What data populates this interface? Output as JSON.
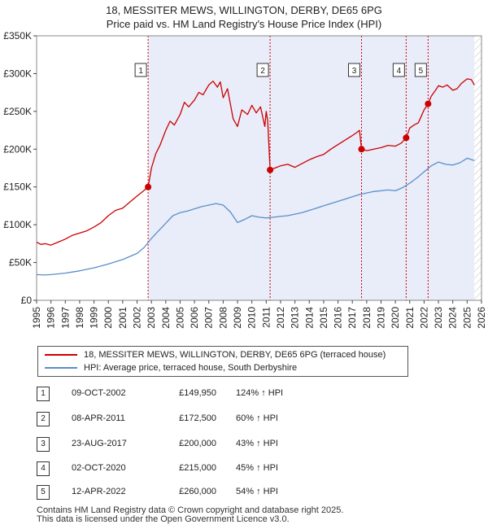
{
  "title": {
    "line1": "18, MESSITER MEWS, WILLINGTON, DERBY, DE65 6PG",
    "line2": "Price paid vs. HM Land Registry's House Price Index (HPI)"
  },
  "chart_data": {
    "type": "line",
    "title": "18, MESSITER MEWS, WILLINGTON, DERBY, DE65 6PG — Price paid vs. HM Land Registry's House Price Index (HPI)",
    "xlim": [
      1995,
      2026
    ],
    "ylim": [
      0,
      350000
    ],
    "x_ticks": [
      1995,
      1996,
      1997,
      1998,
      1999,
      2000,
      2001,
      2002,
      2003,
      2004,
      2005,
      2006,
      2007,
      2008,
      2009,
      2010,
      2011,
      2012,
      2013,
      2014,
      2015,
      2016,
      2017,
      2018,
      2019,
      2020,
      2021,
      2022,
      2023,
      2024,
      2025,
      2026
    ],
    "y_ticks": [
      {
        "value": 0,
        "label": "£0"
      },
      {
        "value": 50000,
        "label": "£50K"
      },
      {
        "value": 100000,
        "label": "£100K"
      },
      {
        "value": 150000,
        "label": "£150K"
      },
      {
        "value": 200000,
        "label": "£200K"
      },
      {
        "value": 250000,
        "label": "£250K"
      },
      {
        "value": 300000,
        "label": "£300K"
      },
      {
        "value": 350000,
        "label": "£350K"
      }
    ],
    "series": [
      {
        "name": "18, MESSITER MEWS, WILLINGTON, DERBY, DE65 6PG (terraced house)",
        "color": "#cc0000",
        "x": [
          1995.0,
          1995.3,
          1995.6,
          1996.0,
          1996.5,
          1997.0,
          1997.5,
          1998.0,
          1998.5,
          1999.0,
          1999.5,
          2000.0,
          2000.5,
          2001.0,
          2001.5,
          2002.0,
          2002.4,
          2002.77,
          2003.0,
          2003.3,
          2003.6,
          2004.0,
          2004.3,
          2004.6,
          2005.0,
          2005.3,
          2005.6,
          2006.0,
          2006.3,
          2006.6,
          2007.0,
          2007.3,
          2007.6,
          2007.8,
          2008.0,
          2008.3,
          2008.7,
          2009.0,
          2009.3,
          2009.7,
          2010.0,
          2010.3,
          2010.6,
          2010.9,
          2011.0,
          2011.1,
          2011.27,
          2011.6,
          2012.0,
          2012.5,
          2013.0,
          2013.5,
          2014.0,
          2014.5,
          2015.0,
          2015.5,
          2016.0,
          2016.5,
          2017.0,
          2017.3,
          2017.5,
          2017.64,
          2018.0,
          2018.5,
          2019.0,
          2019.5,
          2020.0,
          2020.4,
          2020.75,
          2021.0,
          2021.3,
          2021.6,
          2022.0,
          2022.28,
          2022.5,
          2022.8,
          2023.0,
          2023.3,
          2023.6,
          2024.0,
          2024.3,
          2024.6,
          2025.0,
          2025.3,
          2025.5
        ],
        "y": [
          77000,
          74000,
          75000,
          73000,
          77000,
          81000,
          86000,
          89000,
          92000,
          97000,
          103000,
          112000,
          119000,
          122000,
          130000,
          138000,
          144000,
          149950,
          175000,
          194000,
          205000,
          225000,
          237000,
          232000,
          246000,
          262000,
          256000,
          265000,
          275000,
          272000,
          285000,
          290000,
          282000,
          289000,
          268000,
          280000,
          240000,
          230000,
          252000,
          246000,
          258000,
          248000,
          256000,
          230000,
          250000,
          238000,
          172500,
          175000,
          178000,
          180000,
          176000,
          181000,
          186000,
          190000,
          193000,
          200000,
          206000,
          212000,
          218000,
          222000,
          225000,
          200000,
          198000,
          200000,
          202000,
          205000,
          204000,
          208000,
          215000,
          228000,
          232000,
          235000,
          252000,
          260000,
          270000,
          278000,
          284000,
          282000,
          285000,
          278000,
          280000,
          287000,
          293000,
          292000,
          285000
        ]
      },
      {
        "name": "HPI: Average price, terraced house, South Derbyshire",
        "color": "#5b8ec9",
        "x": [
          1995.0,
          1995.5,
          1996.0,
          1996.5,
          1997.0,
          1997.5,
          1998.0,
          1998.5,
          1999.0,
          1999.5,
          2000.0,
          2000.5,
          2001.0,
          2001.5,
          2002.0,
          2002.5,
          2003.0,
          2003.5,
          2004.0,
          2004.5,
          2005.0,
          2005.5,
          2006.0,
          2006.5,
          2007.0,
          2007.5,
          2008.0,
          2008.5,
          2009.0,
          2009.5,
          2010.0,
          2010.5,
          2011.0,
          2011.5,
          2012.0,
          2012.5,
          2013.0,
          2013.5,
          2014.0,
          2014.5,
          2015.0,
          2015.5,
          2016.0,
          2016.5,
          2017.0,
          2017.5,
          2018.0,
          2018.5,
          2019.0,
          2019.5,
          2020.0,
          2020.5,
          2021.0,
          2021.5,
          2022.0,
          2022.5,
          2023.0,
          2023.5,
          2024.0,
          2024.5,
          2025.0,
          2025.5
        ],
        "y": [
          34000,
          33500,
          34000,
          35000,
          36000,
          37500,
          39000,
          41000,
          43000,
          45500,
          48000,
          51000,
          54000,
          58000,
          62000,
          70000,
          82000,
          92000,
          102000,
          112000,
          116000,
          118000,
          121000,
          124000,
          126000,
          128000,
          126000,
          117000,
          103000,
          107000,
          112000,
          110000,
          109000,
          110000,
          111000,
          112000,
          114000,
          116000,
          119000,
          122000,
          125000,
          128000,
          131000,
          134000,
          137000,
          140000,
          142000,
          144000,
          145000,
          146000,
          145000,
          149000,
          155000,
          162000,
          170000,
          178000,
          183000,
          180000,
          179000,
          182000,
          188000,
          185000
        ]
      }
    ],
    "sales": [
      {
        "id": "1",
        "x": 2002.77,
        "price": 149950
      },
      {
        "id": "2",
        "x": 2011.27,
        "price": 172500
      },
      {
        "id": "3",
        "x": 2017.64,
        "price": 200000
      },
      {
        "id": "4",
        "x": 2020.75,
        "price": 215000
      },
      {
        "id": "5",
        "x": 2022.28,
        "price": 260000
      }
    ],
    "legend_position": "bottom",
    "grid": false
  },
  "legend": {
    "items": [
      {
        "label": "18, MESSITER MEWS, WILLINGTON, DERBY, DE65 6PG (terraced house)",
        "color": "#cc0000"
      },
      {
        "label": "HPI: Average price, terraced house, South Derbyshire",
        "color": "#5b8ec9"
      }
    ]
  },
  "sales_table": [
    {
      "num": "1",
      "date": "09-OCT-2002",
      "price": "£149,950",
      "hpi": "124% ↑ HPI"
    },
    {
      "num": "2",
      "date": "08-APR-2011",
      "price": "£172,500",
      "hpi": "60% ↑ HPI"
    },
    {
      "num": "3",
      "date": "23-AUG-2017",
      "price": "£200,000",
      "hpi": "43% ↑ HPI"
    },
    {
      "num": "4",
      "date": "02-OCT-2020",
      "price": "£215,000",
      "hpi": "45% ↑ HPI"
    },
    {
      "num": "5",
      "date": "12-APR-2022",
      "price": "£260,000",
      "hpi": "54% ↑ HPI"
    }
  ],
  "footer": {
    "line1": "Contains HM Land Registry data © Crown copyright and database right 2025.",
    "line2": "This data is licensed under the Open Government Licence v3.0."
  }
}
